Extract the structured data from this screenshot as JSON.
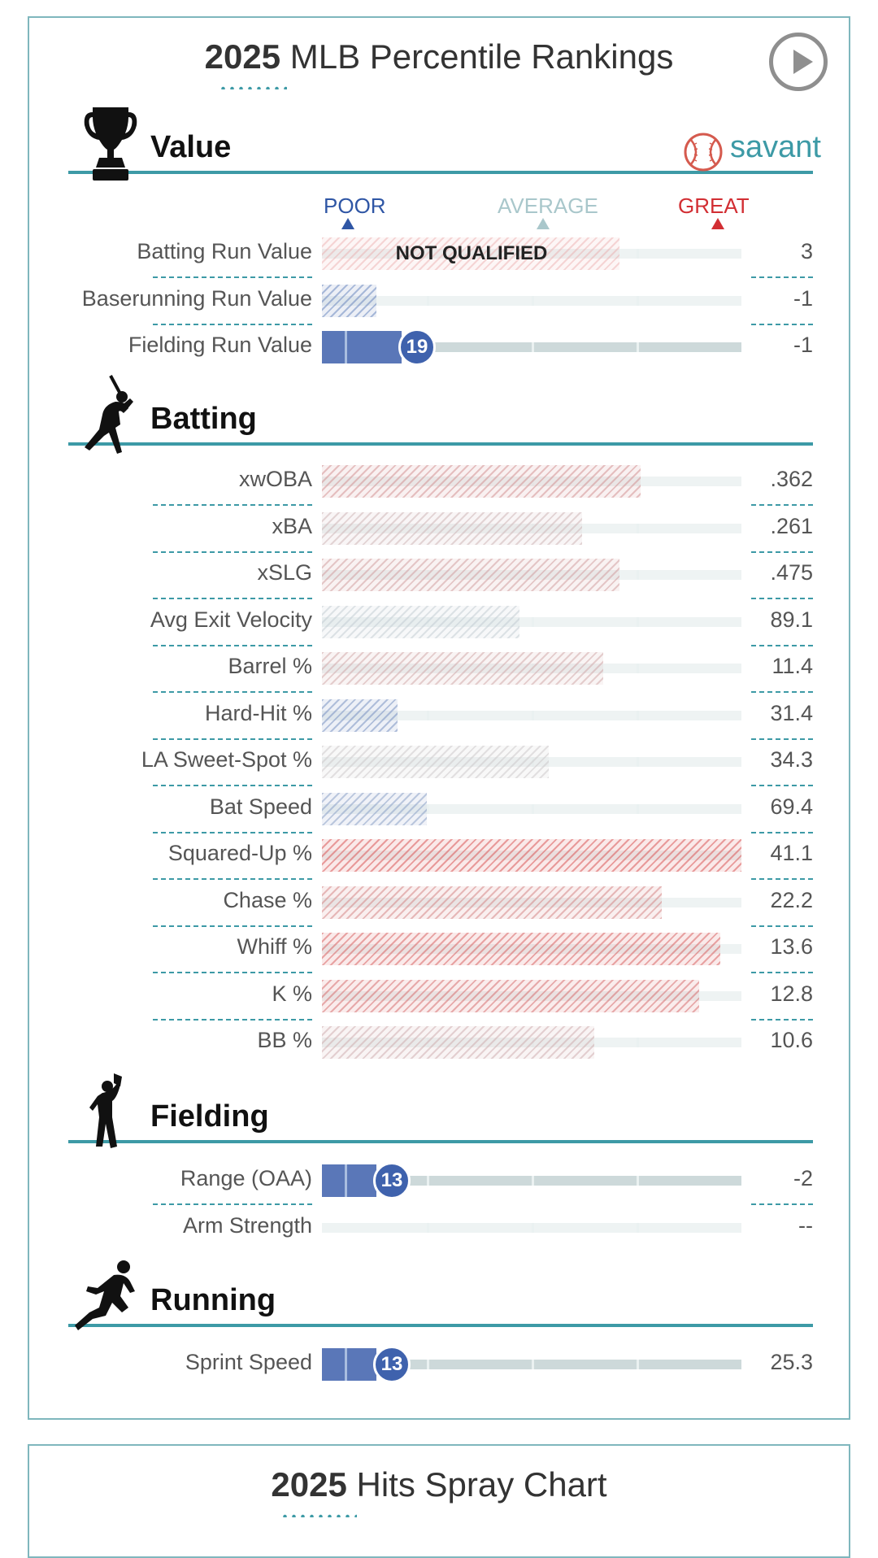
{
  "percentile_card": {
    "title_year": "2025",
    "title_rest": "MLB Percentile Rankings",
    "brand": "savant",
    "scale": {
      "poor": "POOR",
      "average": "AVERAGE",
      "great": "GREAT"
    },
    "colors": {
      "accent": "#3d9aa6",
      "poor": "#2f56a5",
      "average": "#a9c7cb",
      "great": "#d22e33"
    },
    "sections": {
      "value": {
        "title": "Value",
        "icon": "trophy-icon"
      },
      "batting": {
        "title": "Batting",
        "icon": "batter-icon"
      },
      "fielding": {
        "title": "Fielding",
        "icon": "fielder-icon"
      },
      "running": {
        "title": "Running",
        "icon": "runner-icon"
      }
    },
    "value_rows": [
      {
        "label": "Batting Run Value",
        "value": "3",
        "percentile": 71,
        "qualified": false,
        "note": "NOT QUALIFIED"
      },
      {
        "label": "Baserunning Run Value",
        "value": "-1",
        "percentile": 13,
        "qualified": false
      },
      {
        "label": "Fielding Run Value",
        "value": "-1",
        "percentile": 19,
        "qualified": true,
        "percentile_label": "19"
      }
    ],
    "batting_rows": [
      {
        "label": "xwOBA",
        "value": ".362",
        "percentile": 76
      },
      {
        "label": "xBA",
        "value": ".261",
        "percentile": 62
      },
      {
        "label": "xSLG",
        "value": ".475",
        "percentile": 71
      },
      {
        "label": "Avg Exit Velocity",
        "value": "89.1",
        "percentile": 47
      },
      {
        "label": "Barrel %",
        "value": "11.4",
        "percentile": 67
      },
      {
        "label": "Hard-Hit %",
        "value": "31.4",
        "percentile": 18
      },
      {
        "label": "LA Sweet-Spot %",
        "value": "34.3",
        "percentile": 54
      },
      {
        "label": "Bat Speed",
        "value": "69.4",
        "percentile": 25
      },
      {
        "label": "Squared-Up %",
        "value": "41.1",
        "percentile": 100
      },
      {
        "label": "Chase %",
        "value": "22.2",
        "percentile": 81
      },
      {
        "label": "Whiff %",
        "value": "13.6",
        "percentile": 95
      },
      {
        "label": "K %",
        "value": "12.8",
        "percentile": 90
      },
      {
        "label": "BB %",
        "value": "10.6",
        "percentile": 65
      }
    ],
    "fielding_rows": [
      {
        "label": "Range (OAA)",
        "value": "-2",
        "percentile": 13,
        "qualified": true,
        "percentile_label": "13"
      },
      {
        "label": "Arm Strength",
        "value": "--",
        "percentile": null
      }
    ],
    "running_rows": [
      {
        "label": "Sprint Speed",
        "value": "25.3",
        "percentile": 13,
        "qualified": true,
        "percentile_label": "13"
      }
    ]
  },
  "spray_card": {
    "title_year": "2025",
    "title_rest": "Hits Spray Chart"
  }
}
